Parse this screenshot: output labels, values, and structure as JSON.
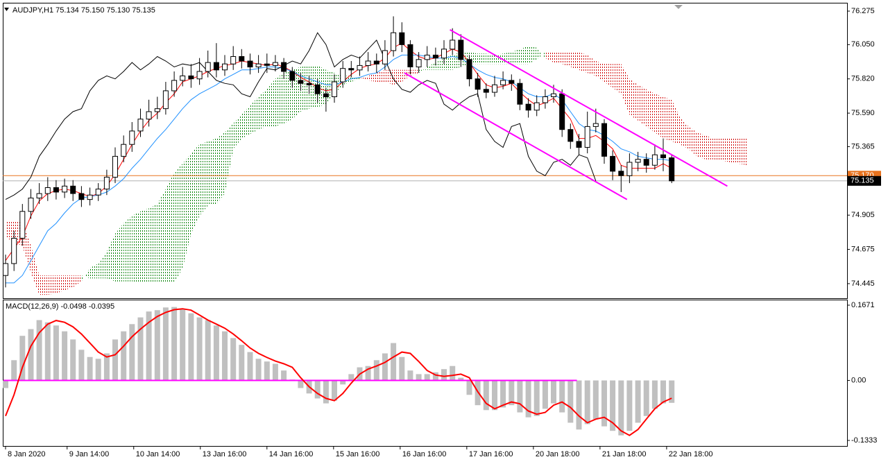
{
  "chart_data": [
    {
      "type": "candlestick",
      "title": "AUDJPY,H1  75.134 75.150 75.130 75.135",
      "xlim": [
        -0.33,
        99.8
      ],
      "ylim": [
        74.347,
        76.331
      ],
      "yticks": [
        76.275,
        {
          "value": 76.05,
          "label": "76.050"
        },
        {
          "value": 75.82,
          "label": "75.820"
        },
        {
          "value": 75.59,
          "label": "75.590"
        },
        75.365,
        74.905,
        74.675,
        74.445
      ],
      "up_color": "#ffffff",
      "down_color": "#000000",
      "open": [
        74.5,
        74.58,
        74.75,
        74.93,
        75.02,
        75.05,
        75.09,
        75.06,
        75.1,
        75.05,
        75.01,
        75.04,
        75.08,
        75.16,
        75.3,
        75.38,
        75.47,
        75.55,
        75.6,
        75.62,
        75.74,
        75.81,
        75.84,
        75.82,
        75.87,
        75.93,
        75.88,
        75.92,
        75.97,
        75.94,
        75.9,
        75.92,
        75.91,
        75.93,
        75.87,
        75.81,
        75.79,
        75.78,
        75.72,
        75.7,
        75.8,
        75.89,
        75.88,
        75.91,
        75.94,
        75.92,
        76.01,
        76.13,
        76.05,
        75.9,
        75.95,
        75.98,
        75.96,
        76.02,
        76.08,
        75.95,
        75.82,
        75.75,
        75.73,
        75.78,
        75.81,
        75.79,
        75.65,
        75.61,
        75.66,
        75.7,
        75.72,
        75.48,
        75.4,
        75.36,
        75.5,
        75.52,
        75.3,
        75.2,
        75.17,
        75.26,
        75.28,
        75.24,
        75.31,
        75.29
      ],
      "high": [
        74.64,
        74.8,
        74.98,
        75.08,
        75.12,
        75.16,
        75.14,
        75.15,
        75.14,
        75.1,
        75.09,
        75.12,
        75.21,
        75.36,
        75.44,
        75.53,
        75.62,
        75.68,
        75.7,
        75.8,
        75.87,
        75.9,
        75.92,
        75.96,
        76.01,
        76.06,
        75.98,
        76.04,
        76.02,
        75.99,
        75.98,
        75.99,
        75.98,
        75.96,
        75.9,
        75.86,
        75.84,
        75.82,
        75.76,
        75.85,
        75.94,
        75.94,
        75.97,
        76.0,
        75.99,
        76.08,
        76.24,
        76.2,
        76.08,
        76.0,
        76.04,
        76.03,
        76.08,
        76.16,
        76.12,
        75.98,
        75.86,
        75.79,
        75.84,
        75.87,
        75.85,
        75.82,
        75.69,
        75.71,
        75.75,
        75.78,
        75.75,
        75.52,
        75.45,
        75.6,
        75.62,
        75.55,
        75.34,
        75.24,
        75.32,
        75.33,
        75.32,
        75.38,
        75.42,
        75.31
      ],
      "low": [
        74.42,
        74.53,
        74.7,
        74.88,
        74.98,
        75.0,
        75.01,
        75.02,
        75.0,
        74.96,
        74.97,
        75.0,
        75.04,
        75.12,
        75.26,
        75.33,
        75.43,
        75.5,
        75.55,
        75.58,
        75.7,
        75.77,
        75.76,
        75.78,
        75.83,
        75.83,
        75.84,
        75.88,
        75.89,
        75.85,
        75.86,
        75.86,
        75.87,
        75.82,
        75.76,
        75.74,
        75.72,
        75.66,
        75.6,
        75.66,
        75.76,
        75.83,
        75.84,
        75.87,
        75.86,
        75.88,
        75.97,
        76.0,
        75.85,
        75.86,
        75.9,
        75.91,
        75.92,
        75.98,
        75.9,
        75.77,
        75.7,
        75.69,
        75.7,
        75.75,
        75.74,
        75.61,
        75.56,
        75.57,
        75.62,
        75.66,
        75.43,
        75.35,
        75.31,
        75.32,
        75.46,
        75.25,
        75.14,
        75.06,
        75.12,
        75.2,
        75.19,
        75.21,
        75.2,
        75.12
      ],
      "close": [
        74.58,
        74.75,
        74.93,
        75.02,
        75.05,
        75.09,
        75.06,
        75.1,
        75.05,
        75.01,
        75.04,
        75.08,
        75.16,
        75.3,
        75.38,
        75.47,
        75.55,
        75.6,
        75.62,
        75.74,
        75.81,
        75.84,
        75.82,
        75.87,
        75.93,
        75.88,
        75.92,
        75.97,
        75.94,
        75.9,
        75.92,
        75.91,
        75.93,
        75.87,
        75.81,
        75.79,
        75.78,
        75.72,
        75.7,
        75.8,
        75.89,
        75.88,
        75.91,
        75.94,
        75.92,
        76.01,
        76.13,
        76.05,
        75.9,
        75.95,
        75.98,
        75.96,
        76.02,
        76.08,
        75.95,
        75.82,
        75.75,
        75.73,
        75.78,
        75.81,
        75.79,
        75.65,
        75.61,
        75.66,
        75.7,
        75.72,
        75.48,
        75.4,
        75.36,
        75.5,
        75.52,
        75.3,
        75.2,
        75.17,
        75.26,
        75.28,
        75.24,
        75.31,
        75.29,
        75.135
      ],
      "lines": [
        {
          "color": "#ff0000",
          "values": [
            74.6,
            74.68,
            74.76,
            74.9,
            75.0,
            75.05,
            75.07,
            75.08,
            75.07,
            75.05,
            75.03,
            75.05,
            75.1,
            75.18,
            75.28,
            75.38,
            75.47,
            75.54,
            75.59,
            75.66,
            75.72,
            75.8,
            75.82,
            75.84,
            75.87,
            75.89,
            75.91,
            75.92,
            75.94,
            75.93,
            75.92,
            75.91,
            75.92,
            75.9,
            75.87,
            75.83,
            75.8,
            75.76,
            75.74,
            75.75,
            75.8,
            75.85,
            75.89,
            75.91,
            75.92,
            75.96,
            76.03,
            76.06,
            76.01,
            75.97,
            75.95,
            75.96,
            75.99,
            76.02,
            76.0,
            75.93,
            75.85,
            75.78,
            75.76,
            75.77,
            75.79,
            75.73,
            75.68,
            75.64,
            75.66,
            75.69,
            75.62,
            75.55,
            75.42,
            75.42,
            75.44,
            75.4,
            75.35,
            75.24,
            75.22,
            75.22,
            75.22,
            75.22,
            75.25,
            75.22
          ]
        },
        {
          "color": "#1e90ff",
          "values": [
            74.45,
            74.45,
            74.5,
            74.6,
            74.7,
            74.8,
            74.85,
            74.92,
            74.98,
            75.02,
            75.03,
            75.04,
            75.06,
            75.1,
            75.15,
            75.22,
            75.28,
            75.35,
            75.42,
            75.48,
            75.55,
            75.62,
            75.68,
            75.72,
            75.75,
            75.78,
            75.82,
            75.85,
            75.88,
            75.88,
            75.89,
            75.9,
            75.9,
            75.89,
            75.87,
            75.84,
            75.82,
            75.8,
            75.78,
            75.78,
            75.8,
            75.82,
            75.83,
            75.85,
            75.86,
            75.9,
            75.95,
            75.98,
            75.98,
            75.98,
            75.97,
            75.96,
            75.96,
            75.97,
            75.96,
            75.92,
            75.88,
            75.85,
            75.83,
            75.82,
            75.8,
            75.76,
            75.72,
            75.7,
            75.7,
            75.72,
            75.68,
            75.6,
            75.52,
            75.48,
            75.47,
            75.44,
            75.4,
            75.35,
            75.33,
            75.3,
            75.29,
            75.28,
            75.28,
            75.27
          ]
        },
        {
          "color": "#000000",
          "values": [
            75.01,
            75.04,
            75.08,
            75.16,
            75.3,
            75.38,
            75.47,
            75.55,
            75.6,
            75.62,
            75.74,
            75.81,
            75.84,
            75.82,
            75.87,
            75.93,
            75.88,
            75.92,
            75.97,
            75.94,
            75.9,
            75.92,
            75.91,
            75.93,
            75.87,
            75.81,
            75.79,
            75.78,
            75.72,
            75.7,
            75.8,
            75.89,
            75.88,
            75.91,
            75.94,
            75.92,
            76.01,
            76.13,
            76.05,
            75.9,
            75.95,
            75.98,
            75.96,
            76.02,
            76.08,
            75.95,
            75.82,
            75.75,
            75.73,
            75.78,
            75.81,
            75.79,
            75.65,
            75.61,
            75.66,
            75.7,
            75.72,
            75.48,
            75.4,
            75.36,
            75.5,
            75.52,
            75.3,
            75.2,
            75.17,
            75.26,
            75.28,
            75.24,
            75.31,
            75.29,
            75.135,
            null,
            null,
            null,
            null,
            null,
            null,
            null,
            null,
            null
          ]
        }
      ],
      "cloud": {
        "up_color": "#008000",
        "down_color": "#d00000",
        "span_a": [
          74.76,
          74.72,
          74.7,
          74.52,
          74.37,
          74.37,
          74.38,
          74.4,
          74.42,
          74.46,
          74.55,
          74.58,
          74.66,
          74.78,
          74.85,
          74.9,
          74.93,
          74.95,
          74.98,
          75.08,
          75.19,
          75.25,
          75.32,
          75.38,
          75.4,
          75.42,
          75.46,
          75.52,
          75.58,
          75.64,
          75.7,
          75.75,
          75.82,
          75.86,
          75.88,
          75.9,
          75.91,
          75.91,
          75.88,
          75.86,
          75.84,
          75.84,
          75.83,
          75.81,
          75.8,
          75.8,
          75.78,
          75.8,
          75.84,
          75.86,
          75.9,
          75.93,
          75.96,
          75.98,
          76.0,
          76.0,
          75.99,
          75.99,
          75.98,
          75.99,
          76.0,
          76.02,
          76.04,
          76.03,
          75.96,
          75.93,
          75.92,
          75.9,
          75.88,
          75.86,
          75.84,
          75.8,
          75.76,
          75.72,
          75.58,
          75.54,
          75.5,
          75.46,
          75.42,
          75.4,
          75.38,
          75.35,
          75.3,
          75.28,
          75.28,
          75.27,
          75.26,
          75.25,
          75.24
        ],
        "span_b": [
          74.86,
          74.86,
          74.86,
          74.7,
          74.5,
          74.5,
          74.5,
          74.5,
          74.5,
          74.5,
          74.48,
          74.48,
          74.48,
          74.46,
          74.46,
          74.46,
          74.45,
          74.45,
          74.45,
          74.45,
          74.45,
          74.55,
          74.78,
          74.9,
          74.97,
          74.98,
          75.05,
          75.35,
          75.42,
          75.45,
          75.48,
          75.5,
          75.5,
          75.52,
          75.55,
          75.6,
          75.62,
          75.63,
          75.65,
          75.72,
          75.78,
          75.8,
          75.82,
          75.84,
          75.86,
          75.88,
          75.88,
          75.88,
          75.88,
          75.88,
          75.88,
          75.88,
          75.88,
          75.88,
          75.9,
          75.92,
          75.92,
          75.92,
          75.92,
          75.92,
          75.92,
          75.92,
          75.92,
          75.95,
          76.0,
          76.0,
          76.0,
          76.0,
          76.0,
          75.98,
          75.94,
          75.92,
          75.92,
          75.92,
          75.82,
          75.78,
          75.75,
          75.72,
          75.7,
          75.68,
          75.56,
          75.5,
          75.46,
          75.44,
          75.42,
          75.42,
          75.42,
          75.42,
          75.42
        ]
      },
      "trendlines": [
        {
          "color": "#ff00ff",
          "x": [
            52.7,
            85.6
          ],
          "y": [
            76.15,
            75.1
          ]
        },
        {
          "color": "#ff00ff",
          "x": [
            47.3,
            73.7
          ],
          "y": [
            75.86,
            75.01
          ]
        }
      ],
      "ask_line": {
        "value": 75.17,
        "label": "75.170"
      },
      "ask_color": "#e8731f",
      "bid_line": 75.135,
      "bid_color": "#000000"
    },
    {
      "type": "bar",
      "title": "MACD(12,26,9) -0.0498 -0.0395",
      "xlim": [
        -0.33,
        99.8
      ],
      "ylim": [
        -0.1456,
        0.1794
      ],
      "yticks": [
        0.1671,
        {
          "value": 0,
          "label": "0.00"
        },
        -0.1333
      ],
      "xticks": [
        {
          "value": 0,
          "label": "8 Jan 2020"
        },
        {
          "value": 7.3,
          "label": "9 Jan 14:00"
        },
        {
          "value": 15.2,
          "label": "10 Jan 14:00"
        },
        {
          "value": 23.1,
          "label": "13 Jan 16:00"
        },
        {
          "value": 31,
          "label": "14 Jan 16:00"
        },
        {
          "value": 38.9,
          "label": "15 Jan 16:00"
        },
        {
          "value": 46.8,
          "label": "16 Jan 16:00"
        },
        {
          "value": 54.7,
          "label": "17 Jan 16:00"
        },
        {
          "value": 62.6,
          "label": "20 Jan 18:00"
        },
        {
          "value": 70.5,
          "label": "21 Jan 18:00"
        },
        {
          "value": 78.4,
          "label": "22 Jan 18:00"
        }
      ],
      "color": "#c0c0c0",
      "level_color": "#ff00ff",
      "values": [
        -0.017,
        0.045,
        0.099,
        0.114,
        0.134,
        0.129,
        0.122,
        0.109,
        0.091,
        0.068,
        0.052,
        0.048,
        0.06,
        0.091,
        0.109,
        0.125,
        0.14,
        0.153,
        0.156,
        0.162,
        0.163,
        0.159,
        0.149,
        0.14,
        0.134,
        0.122,
        0.109,
        0.094,
        0.079,
        0.063,
        0.048,
        0.042,
        0.037,
        0.022,
        0.002,
        -0.017,
        -0.029,
        -0.04,
        -0.051,
        -0.045,
        -0.009,
        0.014,
        0.029,
        0.032,
        0.045,
        0.06,
        0.083,
        0.052,
        0.022,
        0.014,
        0.014,
        0.018,
        0.025,
        0.032,
        0.006,
        -0.032,
        -0.055,
        -0.066,
        -0.066,
        -0.06,
        -0.055,
        -0.071,
        -0.082,
        -0.079,
        -0.063,
        -0.051,
        -0.071,
        -0.094,
        -0.109,
        -0.097,
        -0.086,
        -0.102,
        -0.112,
        -0.122,
        -0.112,
        -0.094,
        -0.079,
        -0.063,
        -0.051,
        -0.0498
      ],
      "signal": {
        "color": "#ff0000",
        "values": [
          -0.079,
          -0.032,
          0.029,
          0.076,
          0.106,
          0.125,
          0.133,
          0.129,
          0.119,
          0.103,
          0.083,
          0.063,
          0.052,
          0.057,
          0.076,
          0.097,
          0.114,
          0.129,
          0.142,
          0.151,
          0.157,
          0.159,
          0.156,
          0.145,
          0.134,
          0.125,
          0.116,
          0.103,
          0.088,
          0.072,
          0.06,
          0.051,
          0.043,
          0.037,
          0.029,
          0.006,
          -0.014,
          -0.029,
          -0.04,
          -0.045,
          -0.029,
          -0.006,
          0.014,
          0.025,
          0.032,
          0.04,
          0.052,
          0.063,
          0.06,
          0.042,
          0.022,
          0.012,
          0.009,
          0.011,
          0.014,
          0.006,
          -0.025,
          -0.051,
          -0.063,
          -0.055,
          -0.048,
          -0.052,
          -0.068,
          -0.075,
          -0.071,
          -0.055,
          -0.048,
          -0.06,
          -0.079,
          -0.094,
          -0.086,
          -0.082,
          -0.094,
          -0.112,
          -0.122,
          -0.109,
          -0.086,
          -0.063,
          -0.048,
          -0.0395
        ]
      }
    }
  ]
}
